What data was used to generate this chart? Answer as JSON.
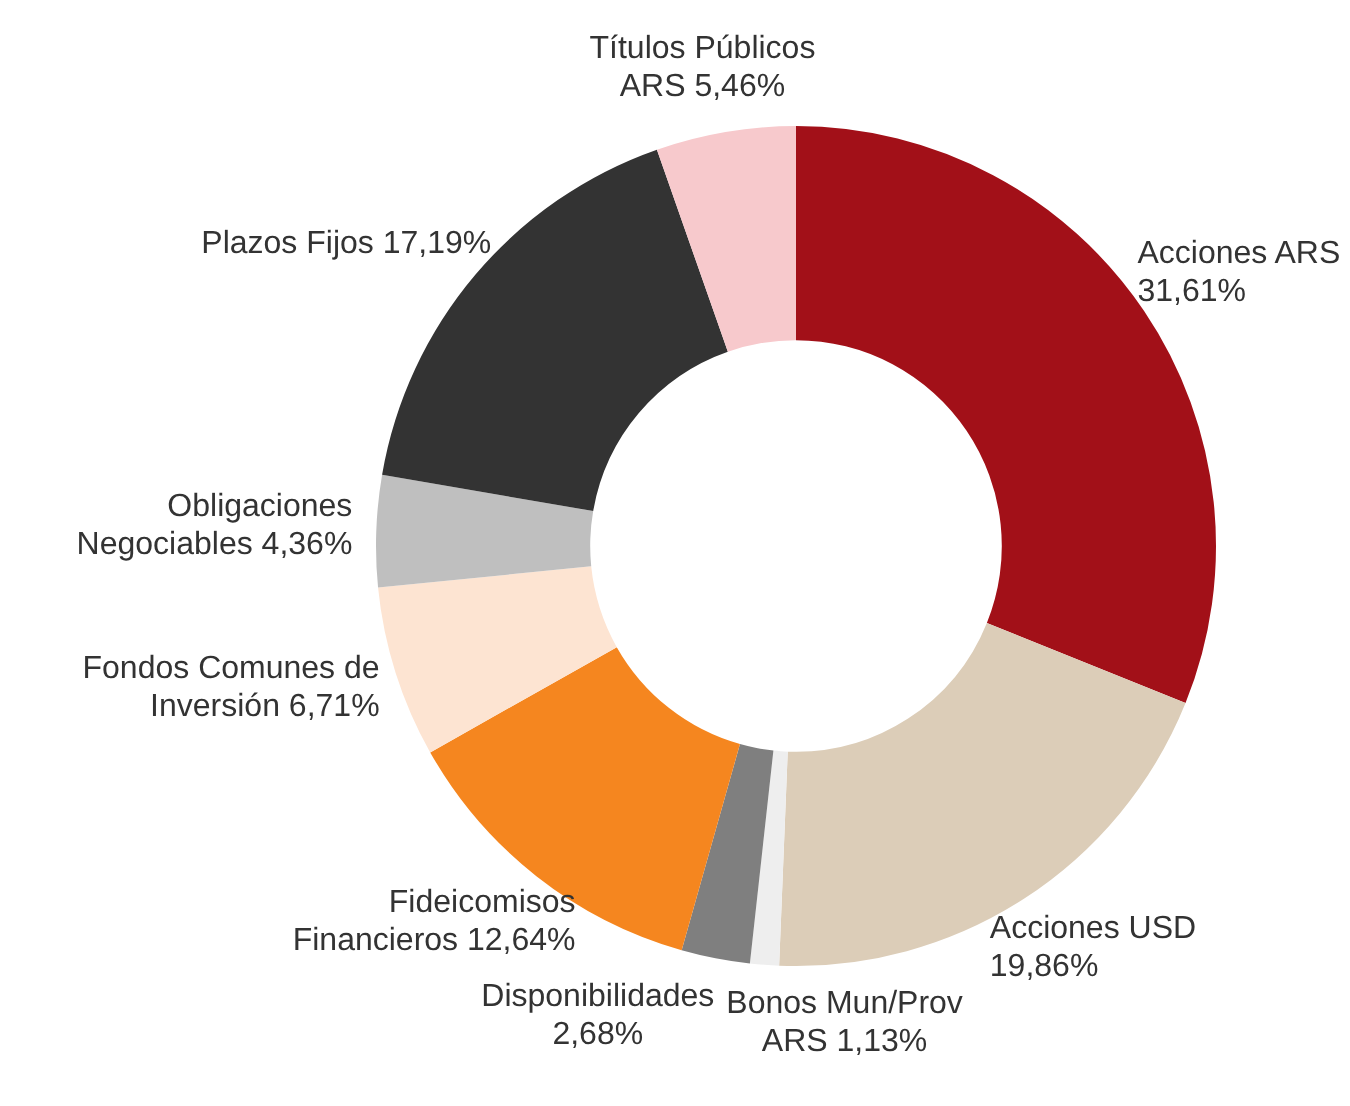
{
  "chart_data": {
    "type": "donut",
    "categories": [
      "Acciones ARS",
      "Acciones USD",
      "Bonos Mun/Prov ARS",
      "Disponibilidades",
      "Fideicomisos Financieros",
      "Fondos Comunes de Inversión",
      "Obligaciones Negociables",
      "Plazos Fijos",
      "Títulos Públicos ARS"
    ],
    "values": [
      31.61,
      19.86,
      1.13,
      2.68,
      12.64,
      6.71,
      4.36,
      17.19,
      5.46
    ],
    "value_labels": [
      "31,61%",
      "19,86%",
      "1,13%",
      "2,68%",
      "12,64%",
      "6,71%",
      "4,36%",
      "17,19%",
      "5,46%"
    ],
    "colors": [
      "#a21018",
      "#dccdb8",
      "#eeeeee",
      "#7f7f7f",
      "#f5861f",
      "#fde4d2",
      "#bfbfbf",
      "#333333",
      "#f7c9cc"
    ],
    "legend": false
  }
}
